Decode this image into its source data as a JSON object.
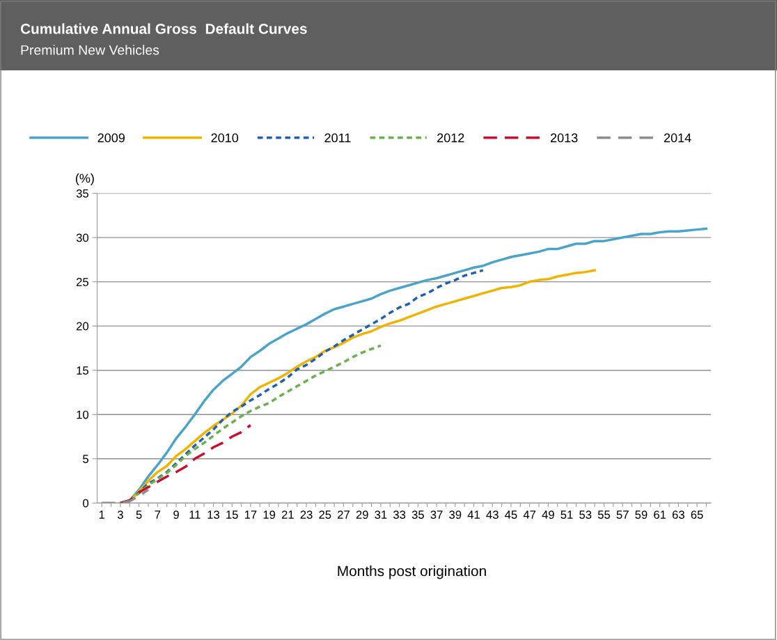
{
  "chart_data": {
    "type": "line",
    "title": "Cumulative Annual Gross  Default Curves",
    "subtitle": "Premium New Vehicles",
    "xlabel": "Months post origination",
    "ylabel": "(%)",
    "categories": [
      "1",
      null,
      "3",
      null,
      "5",
      null,
      "7",
      null,
      "9",
      null,
      "11",
      null,
      "13",
      null,
      "15",
      null,
      "17",
      null,
      "19",
      null,
      "21",
      null,
      "23",
      null,
      "25",
      null,
      "27",
      null,
      "29",
      null,
      "31",
      null,
      "33",
      null,
      "35",
      null,
      "37",
      null,
      "39",
      null,
      "41",
      null,
      "43",
      null,
      "45",
      null,
      "47",
      null,
      "49",
      null,
      "51",
      null,
      "53",
      null,
      "55",
      null,
      "57",
      null,
      "59",
      null,
      "61",
      null,
      "63",
      null,
      "65",
      null
    ],
    "ylim": [
      0,
      35
    ],
    "yticks": [
      0,
      5,
      10,
      15,
      20,
      25,
      30,
      35
    ],
    "grid": "y",
    "legend": "top",
    "marker": "none",
    "series": [
      {
        "name": "2009",
        "color": "#4aa3c8",
        "line_style": "solid",
        "values": [
          null,
          null,
          0,
          0.3,
          1.5,
          3,
          4.3,
          5.7,
          7.3,
          8.6,
          10,
          11.5,
          12.8,
          13.8,
          14.6,
          15.4,
          16.5,
          17.2,
          18,
          18.6,
          19.2,
          19.7,
          20.2,
          20.8,
          21.4,
          21.9,
          22.2,
          22.5,
          22.8,
          23.1,
          23.6,
          24,
          24.3,
          24.6,
          24.9,
          25.2,
          25.4,
          25.7,
          26,
          26.3,
          26.6,
          26.8,
          27.2,
          27.5,
          27.8,
          28,
          28.2,
          28.4,
          28.7,
          28.7,
          29,
          29.3,
          29.3,
          29.6,
          29.6,
          29.8,
          30,
          30.2,
          30.4,
          30.4,
          30.6,
          30.7,
          30.7,
          30.8,
          30.9,
          31
        ]
      },
      {
        "name": "2010",
        "color": "#f0b400",
        "line_style": "solid",
        "values": [
          null,
          null,
          0,
          0.2,
          1.3,
          2.5,
          3.5,
          4.2,
          5.3,
          6.1,
          7,
          7.9,
          8.7,
          9.4,
          10.1,
          11,
          12.3,
          13.1,
          13.6,
          14.1,
          14.7,
          15.4,
          16,
          16.5,
          17.2,
          17.6,
          18.1,
          18.7,
          19.1,
          19.4,
          19.9,
          20.3,
          20.6,
          21,
          21.4,
          21.8,
          22.2,
          22.5,
          22.8,
          23.1,
          23.4,
          23.7,
          24,
          24.3,
          24.4,
          24.6,
          25,
          25.2,
          25.3,
          25.6,
          25.8,
          26,
          26.1,
          26.3,
          null,
          null,
          null,
          null,
          null,
          null,
          null,
          null,
          null,
          null,
          null,
          null
        ]
      },
      {
        "name": "2011",
        "color": "#1f5fb4",
        "line_style": "dotted",
        "values": [
          null,
          null,
          0,
          0.3,
          1.2,
          2.2,
          2.8,
          3.5,
          4.5,
          5.5,
          6.5,
          7.4,
          8.3,
          9.4,
          10.3,
          10.9,
          11.6,
          12.2,
          12.9,
          13.5,
          14.2,
          15.1,
          15.6,
          16.3,
          17.1,
          17.7,
          18.4,
          19,
          19.6,
          20.2,
          20.8,
          21.5,
          22.1,
          22.5,
          23.3,
          23.7,
          24.3,
          24.8,
          25.2,
          25.7,
          26,
          26.3,
          null,
          null,
          null,
          null,
          null,
          null,
          null,
          null,
          null,
          null,
          null,
          null,
          null,
          null,
          null,
          null,
          null,
          null,
          null,
          null,
          null,
          null,
          null,
          null
        ]
      },
      {
        "name": "2012",
        "color": "#6ab04c",
        "line_style": "dotted",
        "values": [
          null,
          null,
          0,
          0.3,
          1.1,
          2,
          2.7,
          3.4,
          4.3,
          5.3,
          6.1,
          6.8,
          7.6,
          8.4,
          9.1,
          9.8,
          10.4,
          10.9,
          11.3,
          12,
          12.6,
          13.2,
          13.8,
          14.4,
          14.9,
          15.4,
          15.9,
          16.5,
          17,
          17.4,
          17.8,
          null,
          null,
          null,
          null,
          null,
          null,
          null,
          null,
          null,
          null,
          null,
          null,
          null,
          null,
          null,
          null,
          null,
          null,
          null,
          null,
          null,
          null,
          null,
          null,
          null,
          null,
          null,
          null,
          null,
          null,
          null,
          null,
          null,
          null,
          null
        ]
      },
      {
        "name": "2013",
        "color": "#c8102e",
        "line_style": "dashed",
        "values": [
          null,
          null,
          0,
          0.3,
          1.2,
          1.8,
          2.4,
          3,
          3.5,
          4.1,
          5,
          5.6,
          6.3,
          6.8,
          7.5,
          8,
          8.8,
          null,
          null,
          null,
          null,
          null,
          null,
          null,
          null,
          null,
          null,
          null,
          null,
          null,
          null,
          null,
          null,
          null,
          null,
          null,
          null,
          null,
          null,
          null,
          null,
          null,
          null,
          null,
          null,
          null,
          null,
          null,
          null,
          null,
          null,
          null,
          null,
          null,
          null,
          null,
          null,
          null,
          null,
          null,
          null,
          null,
          null,
          null,
          null,
          null
        ]
      },
      {
        "name": "2014",
        "color": "#8c8c8c",
        "line_style": "dashed",
        "values": [
          0,
          0,
          0,
          0.2,
          0.8,
          1.5,
          null,
          null,
          null,
          null,
          null,
          null,
          null,
          null,
          null,
          null,
          null,
          null,
          null,
          null,
          null,
          null,
          null,
          null,
          null,
          null,
          null,
          null,
          null,
          null,
          null,
          null,
          null,
          null,
          null,
          null,
          null,
          null,
          null,
          null,
          null,
          null,
          null,
          null,
          null,
          null,
          null,
          null,
          null,
          null,
          null,
          null,
          null,
          null,
          null,
          null,
          null,
          null,
          null,
          null,
          null,
          null,
          null,
          null,
          null,
          null
        ]
      }
    ]
  }
}
